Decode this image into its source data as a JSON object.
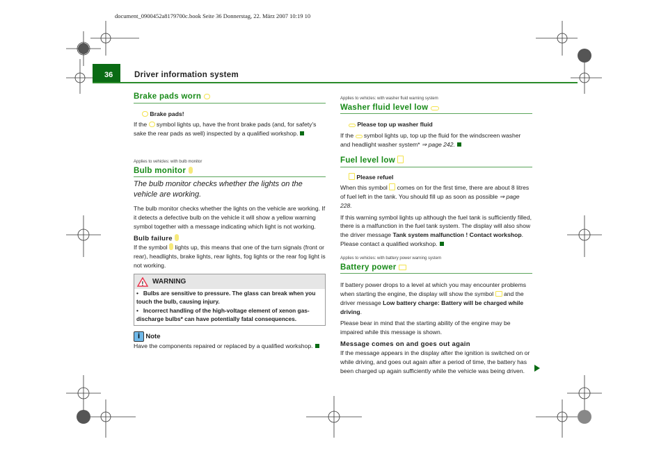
{
  "file_info": "document_0900452a8179700c.book  Seite 36  Donnerstag, 22. März 2007  10:19 10",
  "header": {
    "page_number": "36",
    "title": "Driver information system"
  },
  "left": {
    "brake": {
      "heading": "Brake pads worn",
      "sub": "Brake pads!",
      "p1": "If the",
      "p2": "symbol lights up, have the front brake pads (and, for safety's sake the rear pads as well) inspected by a qualified workshop."
    },
    "bulb": {
      "applies": "Applies to vehicles: with bulb monitor",
      "heading": "Bulb monitor",
      "intro": "The bulb monitor checks whether the lights on the vehicle are working.",
      "p1": "The bulb monitor checks whether the lights on the vehicle are working. If it detects a defective bulb on the vehicle it will show a yellow warning symbol together with a message indicating which light is not working.",
      "sub": "Bulb failure",
      "p2a": "If the symbol",
      "p2b": "lights up, this means that one of the turn signals (front or rear), headlights, brake lights, rear lights, fog lights or the rear fog light is not working."
    },
    "warning": {
      "title": "WARNING",
      "items": [
        "Bulbs are sensitive to pressure. The glass can break when you touch the bulb, causing injury.",
        "Incorrect handling of the high-voltage element of xenon gas-discharge bulbs* can have potentially fatal consequences."
      ]
    },
    "note": {
      "title": "Note",
      "icon": "i",
      "text": "Have the components repaired or replaced by a qualified workshop."
    }
  },
  "right": {
    "washer": {
      "applies": "Applies to vehicles: with washer fluid warning system",
      "heading": "Washer fluid level low",
      "sub": "Please top up washer fluid",
      "p1": "If the",
      "p2": "symbol lights up, top up the fluid for the windscreen washer and headlight washer system*",
      "ref": "⇒ page 242."
    },
    "fuel": {
      "heading": "Fuel level low",
      "sub": "Please refuel",
      "p1a": "When this symbol",
      "p1b": "comes on for the first time, there are about 8 litres of fuel left in the tank. You should fill up as soon as possible",
      "ref": "⇒ page 228.",
      "p2a": "If this warning symbol lights up although the fuel tank is sufficiently filled, there is a malfunction in the fuel tank system. The display will also show the driver message",
      "p2b": "Tank system malfunction ! Contact workshop",
      "p2c": ". Please contact a qualified workshop."
    },
    "battery": {
      "applies": "Applies to vehicles: with battery power warning system",
      "heading": "Battery power",
      "p1a": "If battery power drops to a level at which you may encounter problems when starting the engine, the display will show the symbol",
      "p1b": "and the driver message",
      "p1c": "Low battery charge: Battery will be charged while driving",
      "p1d": ".",
      "p2": "Please bear in mind that the starting ability of the engine may be impaired while this message is shown.",
      "sub": "Message comes on and goes out again",
      "p3": "If the message appears in the display after the ignition is switched on or while driving, and goes out again after a period of time, the battery has been charged up again sufficiently while the vehicle was being driven."
    }
  },
  "colors": {
    "accent": "#0a6b14",
    "heading": "#178a17",
    "symbol": "#f3e24a",
    "warning_icon": "#e8374f",
    "note_icon": "#6fb8e8"
  }
}
